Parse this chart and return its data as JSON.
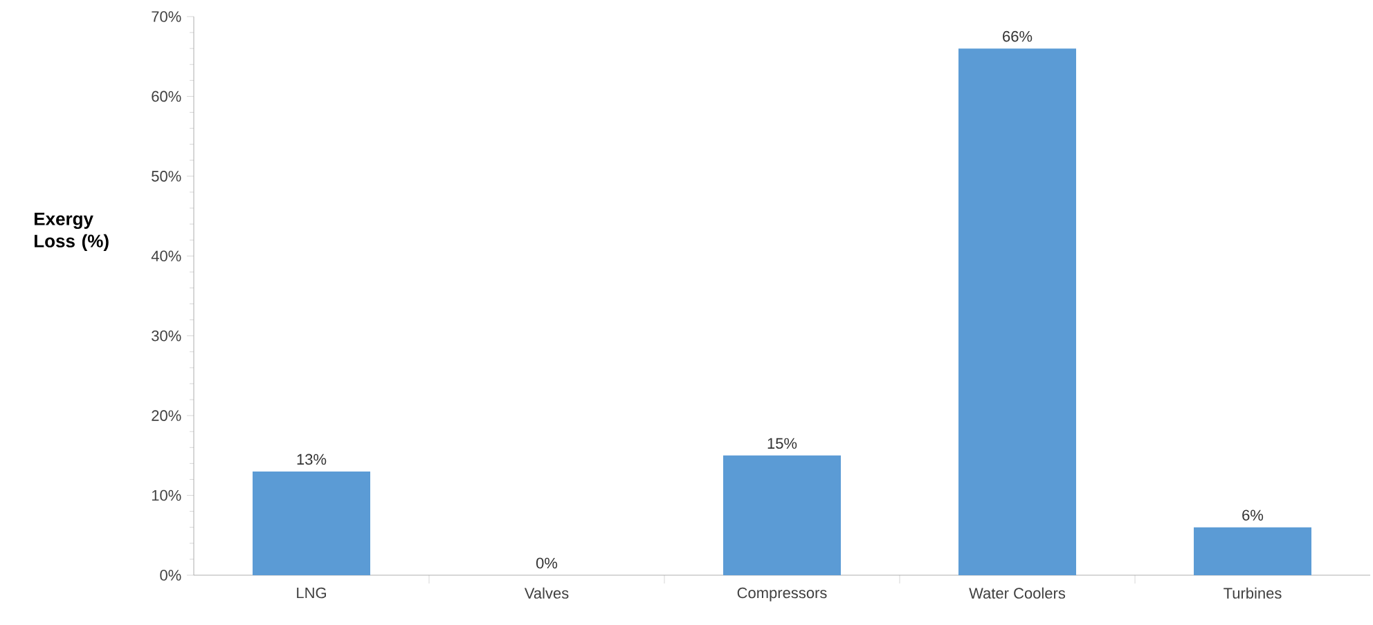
{
  "chart_data": {
    "type": "bar",
    "ylabel": "Exergy Loss (%)",
    "categories": [
      "LNG",
      "Valves",
      "Compressors",
      "Water Coolers",
      "Turbines"
    ],
    "values": [
      13,
      0,
      15,
      66,
      6
    ],
    "value_labels": [
      "13%",
      "0%",
      "15%",
      "66%",
      "6%"
    ],
    "color": "#5b9bd5",
    "ylim": [
      0,
      70
    ],
    "yticks": [
      {
        "value": 0,
        "label": "0%"
      },
      {
        "value": 10,
        "label": "10%"
      },
      {
        "value": 20,
        "label": "20%"
      },
      {
        "value": 30,
        "label": "30%"
      },
      {
        "value": 40,
        "label": "40%"
      },
      {
        "value": 50,
        "label": "50%"
      },
      {
        "value": 60,
        "label": "60%"
      },
      {
        "value": 70,
        "label": "70%"
      }
    ],
    "grid": false
  }
}
